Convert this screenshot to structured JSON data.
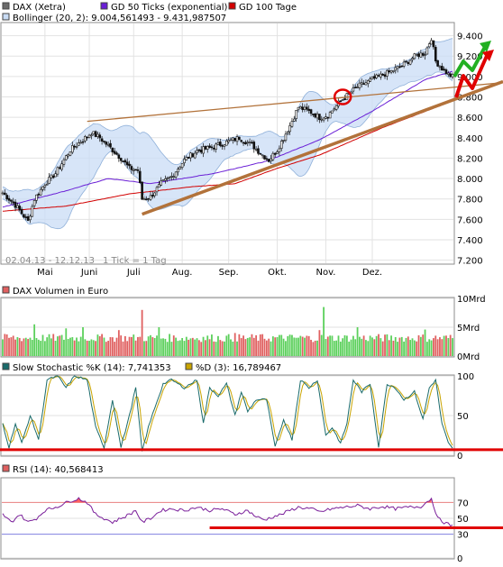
{
  "colors": {
    "price": "#111111",
    "gd50": "#6a1fd6",
    "gd100": "#d20000",
    "bollinger_fill": "#c9dcf5",
    "bollinger_line": "#8fb0d9",
    "volume_up": "#5cd05c",
    "volume_down": "#e06060",
    "stoch_k": "#1a6b6b",
    "stoch_d": "#c9a400",
    "rsi": "#7a1f9a",
    "trend_ann": "#b2723a",
    "mark_red": "#e00000",
    "arrow_green": "#22b022",
    "panel_border": "#8c8c8c",
    "grid": "#e2e2e2"
  },
  "chart_data": [
    {
      "type": "candlestick",
      "name": "price",
      "legend": [
        "DAX (Xetra)",
        "GD 50 Ticks (exponential)",
        "GD 100 Tage",
        "Bollinger (20, 2): 9.004,561493 - 9.431,987507"
      ],
      "date_range_label": "02.04.13 - 12.12.13",
      "tick_label": "1 Tick = 1 Tag",
      "x_labels": [
        "Mai",
        "Juni",
        "Juli",
        "Aug.",
        "Sep.",
        "Okt.",
        "Nov.",
        "Dez."
      ],
      "y_ticks": [
        7200,
        7400,
        7600,
        7800,
        8000,
        8200,
        8400,
        8600,
        8800,
        9000,
        9200,
        9400
      ],
      "y_tick_labels": [
        "7.200",
        "7.400",
        "7.600",
        "7.800",
        "8.000",
        "8.200",
        "8.400",
        "8.600",
        "8.800",
        "9.000",
        "9.200",
        "9.400"
      ],
      "ylim": [
        7170,
        9520
      ],
      "close_keypoints": [
        [
          0,
          7860
        ],
        [
          6,
          7740
        ],
        [
          12,
          7580
        ],
        [
          15,
          7800
        ],
        [
          20,
          7950
        ],
        [
          25,
          8050
        ],
        [
          32,
          8280
        ],
        [
          38,
          8380
        ],
        [
          42,
          8450
        ],
        [
          46,
          8400
        ],
        [
          51,
          8300
        ],
        [
          56,
          8200
        ],
        [
          60,
          8100
        ],
        [
          64,
          8080
        ],
        [
          66,
          7800
        ],
        [
          70,
          7820
        ],
        [
          75,
          7950
        ],
        [
          80,
          8020
        ],
        [
          86,
          8180
        ],
        [
          92,
          8270
        ],
        [
          98,
          8300
        ],
        [
          105,
          8350
        ],
        [
          112,
          8400
        ],
        [
          118,
          8330
        ],
        [
          122,
          8250
        ],
        [
          126,
          8180
        ],
        [
          130,
          8280
        ],
        [
          136,
          8520
        ],
        [
          140,
          8700
        ],
        [
          146,
          8650
        ],
        [
          150,
          8600
        ],
        [
          154,
          8620
        ],
        [
          160,
          8760
        ],
        [
          168,
          8900
        ],
        [
          176,
          8980
        ],
        [
          184,
          9050
        ],
        [
          190,
          9120
        ],
        [
          196,
          9210
        ],
        [
          200,
          9230
        ],
        [
          203,
          9380
        ],
        [
          205,
          9150
        ],
        [
          208,
          9080
        ],
        [
          211,
          9020
        ],
        [
          213,
          9000
        ]
      ],
      "gd50_keypoints": [
        [
          0,
          7720
        ],
        [
          30,
          7880
        ],
        [
          50,
          8000
        ],
        [
          70,
          7950
        ],
        [
          100,
          8050
        ],
        [
          125,
          8170
        ],
        [
          150,
          8380
        ],
        [
          175,
          8660
        ],
        [
          200,
          8970
        ],
        [
          213,
          9050
        ]
      ],
      "gd100_keypoints": [
        [
          0,
          7680
        ],
        [
          30,
          7730
        ],
        [
          60,
          7850
        ],
        [
          90,
          7920
        ],
        [
          110,
          7950
        ],
        [
          130,
          8100
        ],
        [
          150,
          8230
        ],
        [
          180,
          8500
        ],
        [
          213,
          8760
        ]
      ]
    },
    {
      "type": "bar",
      "name": "volume",
      "legend": [
        "DAX Volumen in Euro"
      ],
      "y_ticks": [
        0,
        5,
        10
      ],
      "y_tick_labels": [
        "0Mrd",
        "5Mrd",
        "10Mrd"
      ],
      "ylim": [
        0,
        10
      ],
      "base_level": 3.0,
      "spikes": [
        [
          15,
          5.5
        ],
        [
          30,
          4.8
        ],
        [
          38,
          5.0
        ],
        [
          55,
          4.5
        ],
        [
          66,
          8.0
        ],
        [
          74,
          5.0
        ],
        [
          110,
          4.0
        ],
        [
          150,
          4.5
        ],
        [
          152,
          8.5
        ],
        [
          168,
          5.0
        ],
        [
          200,
          4.6
        ]
      ]
    },
    {
      "type": "line",
      "name": "stochastic",
      "legend": [
        "Slow Stochastic %K (14): 7,741353",
        "%D (3): 16,789467"
      ],
      "y_ticks": [
        0,
        50,
        100
      ],
      "y_tick_labels": [
        "0",
        "50",
        "100"
      ],
      "ylim": [
        0,
        100
      ],
      "k_keypoints": [
        [
          0,
          40
        ],
        [
          3,
          10
        ],
        [
          6,
          40
        ],
        [
          9,
          15
        ],
        [
          13,
          50
        ],
        [
          17,
          20
        ],
        [
          21,
          95
        ],
        [
          26,
          100
        ],
        [
          30,
          85
        ],
        [
          34,
          100
        ],
        [
          40,
          95
        ],
        [
          44,
          35
        ],
        [
          48,
          10
        ],
        [
          52,
          70
        ],
        [
          56,
          10
        ],
        [
          60,
          50
        ],
        [
          63,
          85
        ],
        [
          66,
          5
        ],
        [
          69,
          35
        ],
        [
          72,
          60
        ],
        [
          76,
          90
        ],
        [
          80,
          95
        ],
        [
          86,
          85
        ],
        [
          92,
          95
        ],
        [
          95,
          40
        ],
        [
          98,
          85
        ],
        [
          102,
          75
        ],
        [
          106,
          90
        ],
        [
          110,
          50
        ],
        [
          113,
          80
        ],
        [
          116,
          55
        ],
        [
          120,
          70
        ],
        [
          125,
          70
        ],
        [
          129,
          10
        ],
        [
          133,
          45
        ],
        [
          137,
          20
        ],
        [
          141,
          95
        ],
        [
          145,
          85
        ],
        [
          149,
          95
        ],
        [
          153,
          25
        ],
        [
          156,
          35
        ],
        [
          160,
          15
        ],
        [
          163,
          40
        ],
        [
          166,
          95
        ],
        [
          170,
          80
        ],
        [
          174,
          90
        ],
        [
          178,
          10
        ],
        [
          182,
          90
        ],
        [
          186,
          85
        ],
        [
          190,
          70
        ],
        [
          195,
          80
        ],
        [
          199,
          45
        ],
        [
          202,
          85
        ],
        [
          205,
          95
        ],
        [
          208,
          40
        ],
        [
          211,
          15
        ],
        [
          213,
          8
        ]
      ]
    },
    {
      "type": "line",
      "name": "rsi",
      "legend": [
        "RSI (14): 40,568413"
      ],
      "y_ticks": [
        0,
        30,
        50,
        70
      ],
      "y_tick_labels": [
        "0",
        "30",
        "50",
        "70"
      ],
      "ylim": [
        0,
        100
      ],
      "rsi_keypoints": [
        [
          0,
          55
        ],
        [
          4,
          45
        ],
        [
          8,
          55
        ],
        [
          12,
          45
        ],
        [
          16,
          50
        ],
        [
          20,
          60
        ],
        [
          26,
          65
        ],
        [
          32,
          72
        ],
        [
          36,
          75
        ],
        [
          40,
          70
        ],
        [
          44,
          55
        ],
        [
          48,
          50
        ],
        [
          52,
          45
        ],
        [
          56,
          50
        ],
        [
          60,
          55
        ],
        [
          63,
          60
        ],
        [
          66,
          45
        ],
        [
          70,
          50
        ],
        [
          75,
          60
        ],
        [
          80,
          62
        ],
        [
          86,
          60
        ],
        [
          92,
          64
        ],
        [
          98,
          60
        ],
        [
          104,
          62
        ],
        [
          110,
          55
        ],
        [
          116,
          60
        ],
        [
          120,
          52
        ],
        [
          124,
          48
        ],
        [
          128,
          52
        ],
        [
          132,
          55
        ],
        [
          136,
          60
        ],
        [
          140,
          64
        ],
        [
          146,
          62
        ],
        [
          150,
          58
        ],
        [
          156,
          62
        ],
        [
          162,
          64
        ],
        [
          168,
          66
        ],
        [
          174,
          62
        ],
        [
          180,
          65
        ],
        [
          186,
          62
        ],
        [
          192,
          64
        ],
        [
          198,
          65
        ],
        [
          203,
          75
        ],
        [
          206,
          50
        ],
        [
          209,
          45
        ],
        [
          213,
          40
        ]
      ]
    }
  ]
}
